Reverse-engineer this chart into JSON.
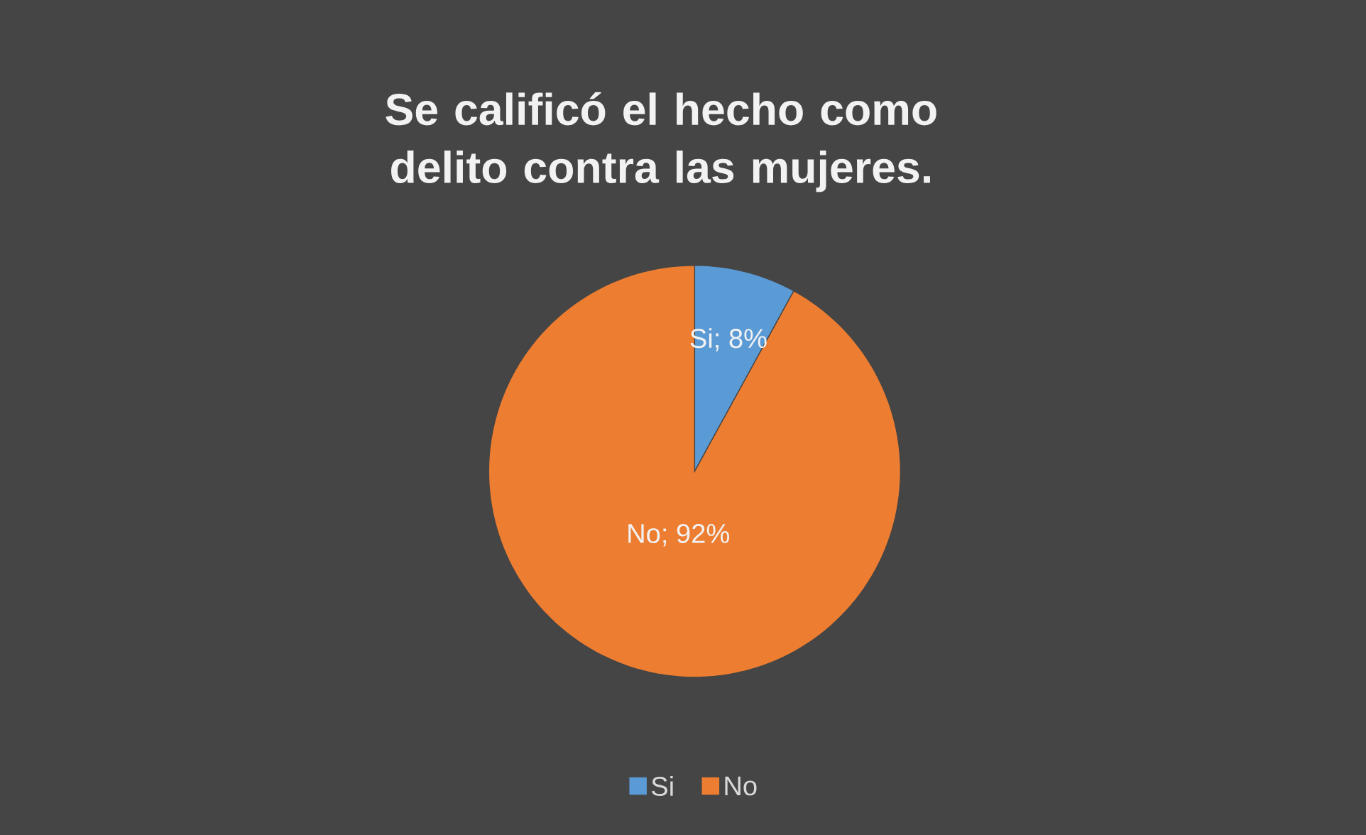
{
  "chart_data": {
    "type": "pie",
    "title": "Se calificó el hecho como delito contra las mujeres.",
    "categories": [
      "Si",
      "No"
    ],
    "values": [
      8,
      92
    ],
    "value_labels": [
      "Si; 8%",
      "No; 92%"
    ],
    "colors": [
      "#5b9bd5",
      "#ed7d31"
    ],
    "legend": "bottom"
  }
}
